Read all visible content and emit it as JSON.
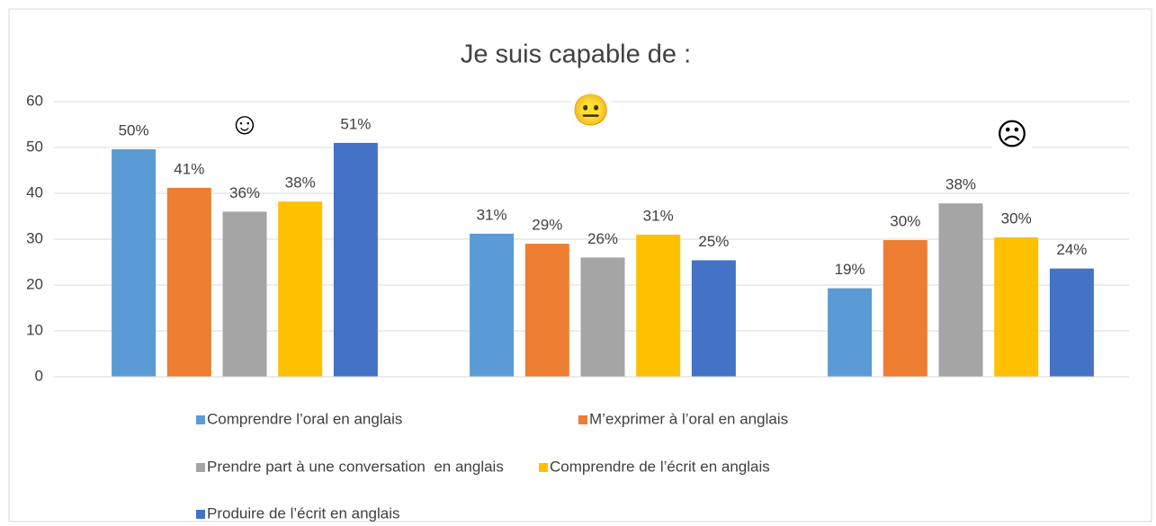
{
  "chart_data": {
    "type": "bar",
    "title": "Je suis capable de :",
    "categories": [
      null,
      null,
      null
    ],
    "annotations": [
      "☺",
      "😐",
      "☹"
    ],
    "series": [
      {
        "name": "Comprendre l’oral en anglais",
        "color": "#5b9bd5",
        "values": [
          49.6,
          31.2,
          19.3
        ],
        "value_labels": [
          "50%",
          "31%",
          "19%"
        ]
      },
      {
        "name": "M’exprimer à l’oral en anglais",
        "color": "#ed7d31",
        "values": [
          41.2,
          29,
          29.8
        ],
        "value_labels": [
          "41%",
          "29%",
          "30%"
        ]
      },
      {
        "name": "Prendre part à une conversation  en anglais",
        "color": "#a5a5a5",
        "values": [
          36,
          26,
          37.8
        ],
        "value_labels": [
          "36%",
          "26%",
          "38%"
        ]
      },
      {
        "name": "Comprendre de l’écrit en anglais",
        "color": "#ffc000",
        "values": [
          38.2,
          31,
          30.4
        ],
        "value_labels": [
          "38%",
          "31%",
          "30%"
        ]
      },
      {
        "name": "Produire de l’écrit en anglais",
        "color": "#4472c4",
        "values": [
          51,
          25.4,
          23.6
        ],
        "value_labels": [
          "51%",
          "25%",
          "24%"
        ]
      }
    ],
    "ylim": [
      0,
      60
    ],
    "yticks": [
      0,
      10,
      20,
      30,
      40,
      50,
      60
    ],
    "grid": true,
    "legend": "bottom"
  }
}
